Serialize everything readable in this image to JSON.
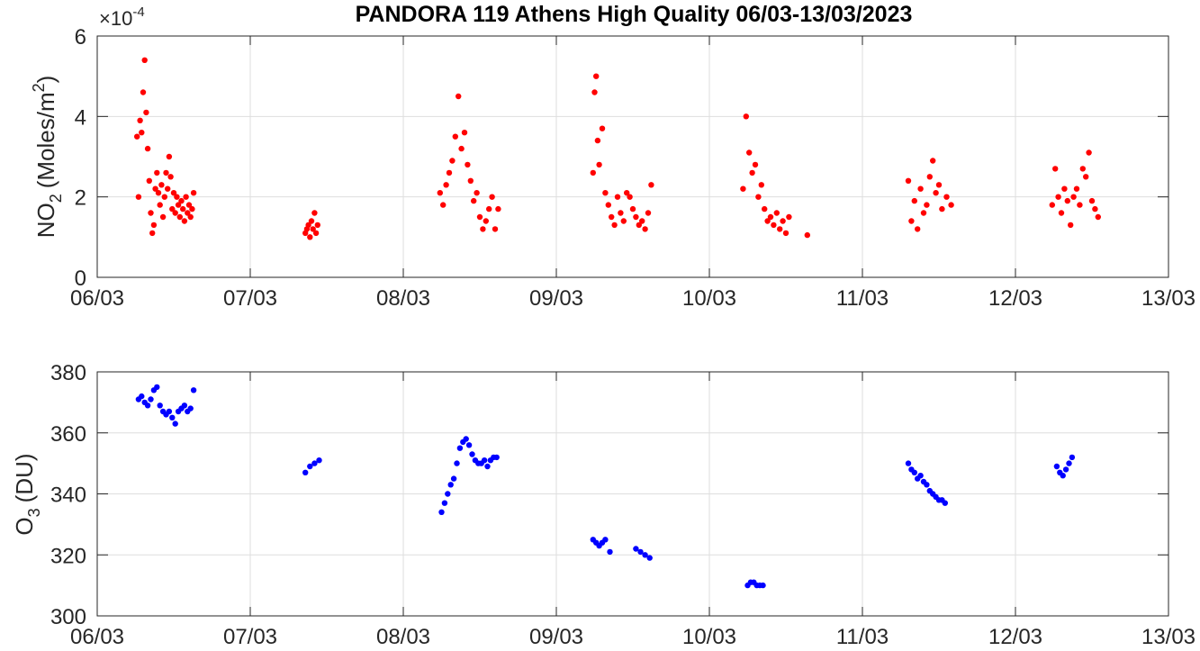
{
  "chart_data": [
    {
      "type": "scatter",
      "title": "PANDORA 119 Athens High Quality 06/03-13/03/2023",
      "ylabel_main": "NO",
      "ylabel_sub": "2",
      "ylabel_units_pre": "(Moles/m",
      "ylabel_units_sup": "2",
      "ylabel_units_post": ")",
      "exponent_prefix": "×10",
      "exponent_power": "-4",
      "xlim": [
        0,
        7
      ],
      "ylim": [
        0,
        6
      ],
      "x_ticks": [
        0,
        1,
        2,
        3,
        4,
        5,
        6,
        7
      ],
      "x_tick_labels": [
        "06/03",
        "07/03",
        "08/03",
        "09/03",
        "10/03",
        "11/03",
        "12/03",
        "13/03"
      ],
      "y_ticks": [
        0,
        2,
        4,
        6
      ],
      "y_tick_labels": [
        "0",
        "2",
        "4",
        "6"
      ],
      "grid": true,
      "color": "#ff0000",
      "series": [
        {
          "x": [
            0.26,
            0.27,
            0.28,
            0.29,
            0.3,
            0.31,
            0.32,
            0.33,
            0.34,
            0.35,
            0.36,
            0.37,
            0.38,
            0.39,
            0.4,
            0.41,
            0.42,
            0.43,
            0.44,
            0.45,
            0.46,
            0.47,
            0.48,
            0.49,
            0.5,
            0.51,
            0.52,
            0.53,
            0.54,
            0.55,
            0.56,
            0.57,
            0.58,
            0.59,
            0.6,
            0.61,
            0.62,
            0.63,
            1.36,
            1.37,
            1.38,
            1.39,
            1.4,
            1.41,
            1.42,
            1.43,
            1.44,
            2.24,
            2.26,
            2.28,
            2.3,
            2.32,
            2.34,
            2.36,
            2.38,
            2.4,
            2.42,
            2.44,
            2.46,
            2.48,
            2.5,
            2.52,
            2.54,
            2.56,
            2.58,
            2.6,
            2.62,
            3.24,
            3.25,
            3.26,
            3.27,
            3.28,
            3.3,
            3.32,
            3.34,
            3.36,
            3.38,
            3.4,
            3.42,
            3.44,
            3.46,
            3.48,
            3.5,
            3.52,
            3.54,
            3.56,
            3.58,
            3.6,
            3.62,
            4.22,
            4.24,
            4.26,
            4.28,
            4.3,
            4.32,
            4.34,
            4.36,
            4.38,
            4.4,
            4.42,
            4.44,
            4.46,
            4.48,
            4.5,
            4.52,
            4.64,
            5.3,
            5.32,
            5.34,
            5.36,
            5.38,
            5.4,
            5.42,
            5.44,
            5.46,
            5.48,
            5.5,
            5.52,
            5.55,
            5.58,
            6.24,
            6.26,
            6.28,
            6.3,
            6.32,
            6.34,
            6.36,
            6.38,
            6.4,
            6.42,
            6.44,
            6.46,
            6.48,
            6.5,
            6.52,
            6.54
          ],
          "y": [
            3.5,
            2.0,
            3.9,
            3.6,
            4.6,
            5.4,
            4.1,
            3.2,
            2.4,
            1.6,
            1.1,
            1.3,
            2.2,
            2.6,
            2.1,
            1.8,
            2.3,
            1.5,
            2.0,
            2.6,
            2.2,
            3.0,
            2.5,
            1.7,
            2.1,
            1.6,
            2.0,
            1.8,
            1.5,
            1.9,
            1.7,
            1.4,
            2.0,
            1.6,
            1.8,
            1.5,
            1.7,
            2.1,
            1.1,
            1.2,
            1.3,
            1.0,
            1.4,
            1.2,
            1.6,
            1.1,
            1.3,
            2.1,
            1.8,
            2.3,
            2.6,
            2.9,
            3.5,
            4.5,
            3.2,
            3.6,
            2.8,
            2.4,
            1.9,
            2.1,
            1.5,
            1.2,
            1.4,
            1.7,
            2.0,
            1.2,
            1.7,
            2.6,
            4.6,
            5.0,
            3.4,
            2.8,
            3.7,
            2.1,
            1.8,
            1.5,
            1.3,
            2.0,
            1.6,
            1.4,
            2.1,
            2.0,
            1.7,
            1.5,
            1.3,
            1.4,
            1.2,
            1.6,
            2.3,
            2.2,
            4.0,
            3.1,
            2.6,
            2.8,
            2.0,
            2.3,
            1.7,
            1.4,
            1.5,
            1.3,
            1.6,
            1.2,
            1.4,
            1.1,
            1.5,
            1.05,
            2.4,
            1.4,
            1.9,
            1.2,
            2.2,
            1.6,
            1.8,
            2.5,
            2.9,
            2.1,
            2.3,
            1.7,
            2.0,
            1.8,
            1.8,
            2.7,
            2.0,
            1.6,
            2.2,
            1.9,
            1.3,
            2.0,
            2.2,
            1.8,
            2.7,
            2.5,
            3.1,
            1.9,
            1.7,
            1.5
          ]
        }
      ]
    },
    {
      "type": "scatter",
      "ylabel_main": "O",
      "ylabel_sub": "3",
      "ylabel_units_pre": "(DU)",
      "xlim": [
        0,
        7
      ],
      "ylim": [
        300,
        380
      ],
      "x_ticks": [
        0,
        1,
        2,
        3,
        4,
        5,
        6,
        7
      ],
      "x_tick_labels": [
        "06/03",
        "07/03",
        "08/03",
        "09/03",
        "10/03",
        "11/03",
        "12/03",
        "13/03"
      ],
      "y_ticks": [
        300,
        320,
        340,
        360,
        380
      ],
      "y_tick_labels": [
        "300",
        "320",
        "340",
        "360",
        "380"
      ],
      "grid": true,
      "color": "#0000ff",
      "series": [
        {
          "x": [
            0.27,
            0.29,
            0.31,
            0.33,
            0.35,
            0.37,
            0.39,
            0.41,
            0.43,
            0.45,
            0.47,
            0.49,
            0.51,
            0.53,
            0.55,
            0.57,
            0.59,
            0.61,
            0.63,
            1.36,
            1.39,
            1.42,
            1.45,
            2.25,
            2.27,
            2.29,
            2.31,
            2.33,
            2.35,
            2.37,
            2.39,
            2.41,
            2.43,
            2.45,
            2.47,
            2.49,
            2.51,
            2.53,
            2.55,
            2.57,
            2.59,
            2.61,
            3.24,
            3.26,
            3.28,
            3.3,
            3.32,
            3.35,
            3.52,
            3.55,
            3.58,
            3.61,
            4.25,
            4.27,
            4.29,
            4.31,
            4.33,
            4.35,
            5.3,
            5.32,
            5.34,
            5.36,
            5.38,
            5.4,
            5.42,
            5.44,
            5.46,
            5.48,
            5.5,
            5.52,
            5.54,
            6.27,
            6.29,
            6.31,
            6.33,
            6.35,
            6.37
          ],
          "y": [
            371,
            372,
            370,
            369,
            371,
            374,
            375,
            369,
            367,
            366,
            367,
            365,
            363,
            367,
            368,
            369,
            367,
            368,
            374,
            347,
            349,
            350,
            351,
            334,
            337,
            340,
            343,
            345,
            350,
            355,
            357,
            358,
            356,
            353,
            351,
            350,
            350,
            351,
            349,
            351,
            352,
            352,
            325,
            324,
            323,
            324,
            325,
            321,
            322,
            321,
            320,
            319,
            310,
            311,
            311,
            310,
            310,
            310,
            350,
            348,
            347,
            345,
            346,
            344,
            343,
            341,
            340,
            339,
            338,
            338,
            337,
            349,
            347,
            346,
            348,
            350,
            352
          ]
        }
      ]
    }
  ]
}
